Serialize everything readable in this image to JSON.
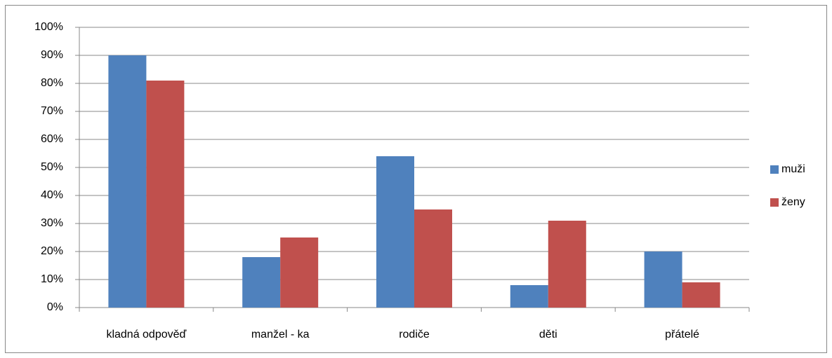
{
  "chart_data": {
    "type": "bar",
    "categories": [
      "kladná odpověď",
      "manžel - ka",
      "rodiče",
      "děti",
      "přátelé"
    ],
    "series": [
      {
        "name": "muži",
        "color": "#4f81bd",
        "values": [
          90,
          18,
          54,
          8,
          20
        ]
      },
      {
        "name": "ženy",
        "color": "#c0504d",
        "values": [
          81,
          25,
          35,
          31,
          9
        ]
      }
    ],
    "ylim": [
      0,
      100
    ],
    "yticks": [
      {
        "value": 0,
        "label": "0%"
      },
      {
        "value": 10,
        "label": "10%"
      },
      {
        "value": 20,
        "label": "20%"
      },
      {
        "value": 30,
        "label": "30%"
      },
      {
        "value": 40,
        "label": "40%"
      },
      {
        "value": 50,
        "label": "50%"
      },
      {
        "value": 60,
        "label": "60%"
      },
      {
        "value": 70,
        "label": "70%"
      },
      {
        "value": 80,
        "label": "80%"
      },
      {
        "value": 90,
        "label": "90%"
      },
      {
        "value": 100,
        "label": "100%"
      }
    ],
    "grid": true,
    "legend": "right"
  }
}
